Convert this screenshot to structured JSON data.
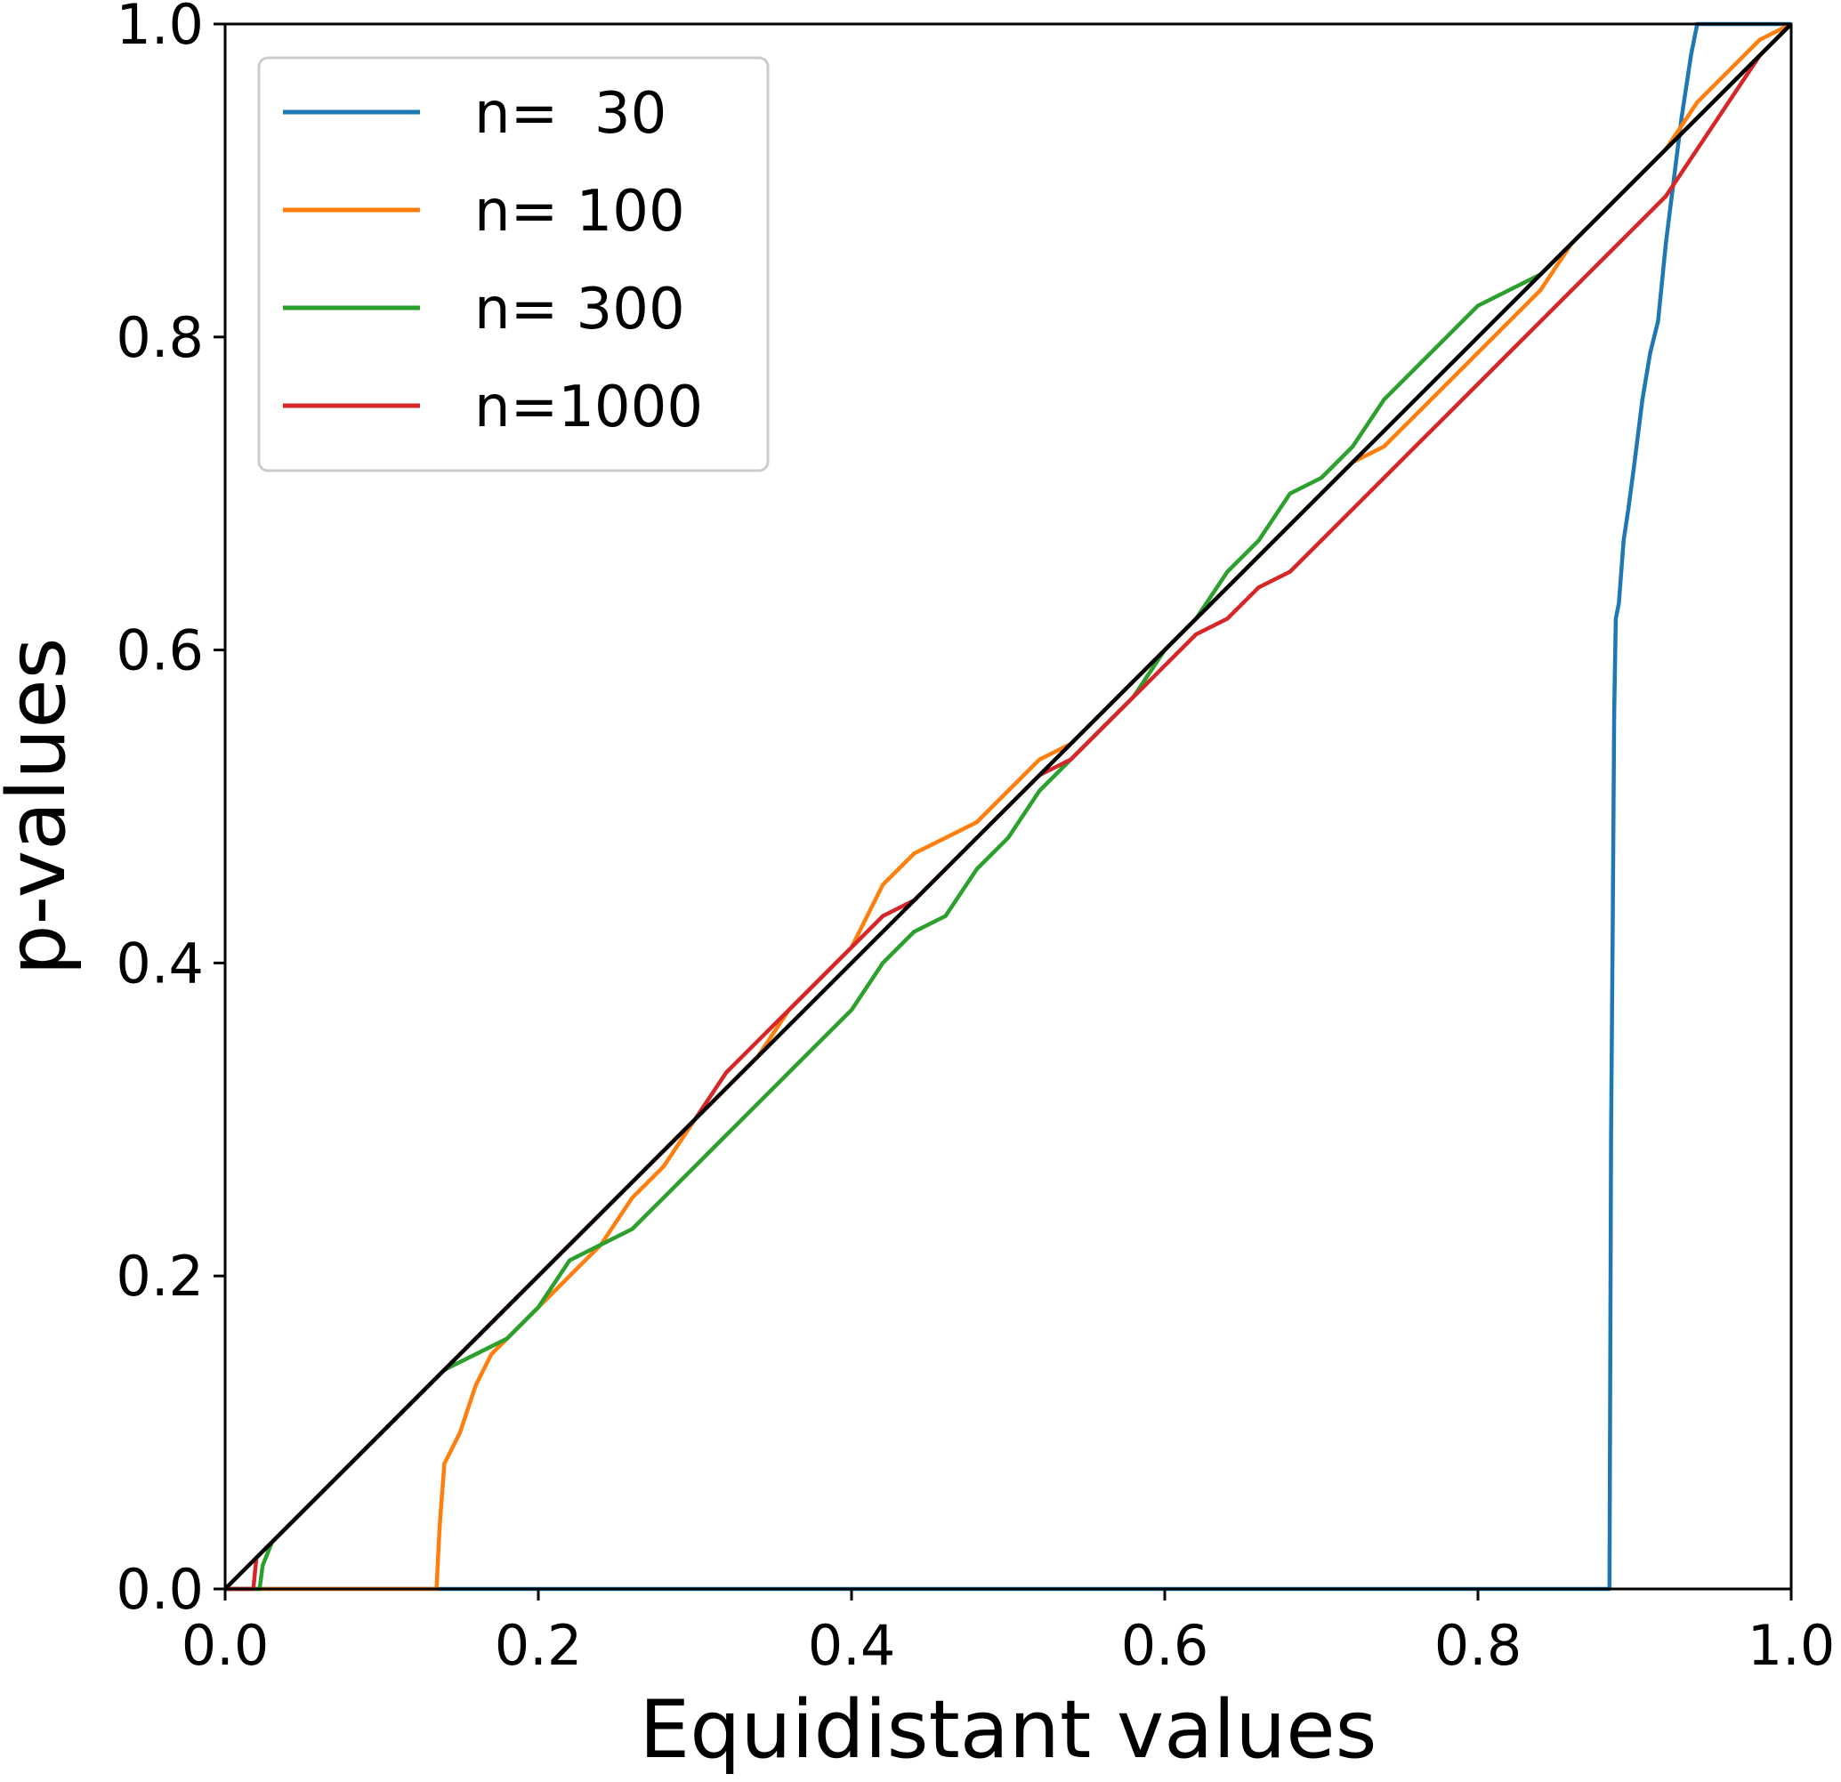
{
  "chart_data": {
    "type": "line",
    "title": "",
    "xlabel": "Equidistant values",
    "ylabel": "p-values",
    "xlim": [
      0.0,
      1.0
    ],
    "ylim": [
      0.0,
      1.0
    ],
    "xticks": [
      "0.0",
      "0.2",
      "0.4",
      "0.6",
      "0.8",
      "1.0"
    ],
    "yticks": [
      "0.0",
      "0.2",
      "0.4",
      "0.6",
      "0.8",
      "1.0"
    ],
    "grid": false,
    "legend_position": "top-left",
    "reference_line": {
      "color": "#000000",
      "x": [
        0.0,
        1.0
      ],
      "y": [
        0.0,
        1.0
      ]
    },
    "series": [
      {
        "name": "n=  30",
        "color": "#1f77b4",
        "x": [
          0.0,
          0.884,
          0.885,
          0.886,
          0.887,
          0.888,
          0.89,
          0.893,
          0.896,
          0.9,
          0.905,
          0.91,
          0.915,
          0.92,
          0.925,
          0.93,
          0.933,
          0.936,
          0.94,
          0.97,
          1.0
        ],
        "y": [
          0.0,
          0.0,
          0.29,
          0.42,
          0.56,
          0.62,
          0.63,
          0.67,
          0.69,
          0.72,
          0.76,
          0.79,
          0.81,
          0.86,
          0.9,
          0.94,
          0.96,
          0.98,
          1.0,
          1.0,
          1.0
        ]
      },
      {
        "name": "n= 100",
        "color": "#ff7f0e",
        "x": [
          0.0,
          0.135,
          0.137,
          0.14,
          0.15,
          0.16,
          0.17,
          0.18,
          0.2,
          0.22,
          0.24,
          0.26,
          0.28,
          0.3,
          0.32,
          0.34,
          0.36,
          0.38,
          0.4,
          0.42,
          0.44,
          0.46,
          0.48,
          0.5,
          0.52,
          0.54,
          0.56,
          0.58,
          0.6,
          0.62,
          0.64,
          0.66,
          0.68,
          0.7,
          0.72,
          0.74,
          0.76,
          0.78,
          0.8,
          0.82,
          0.84,
          0.86,
          0.88,
          0.9,
          0.92,
          0.94,
          0.96,
          0.98,
          1.0
        ],
        "y": [
          0.0,
          0.0,
          0.04,
          0.08,
          0.1,
          0.13,
          0.15,
          0.16,
          0.18,
          0.2,
          0.22,
          0.25,
          0.27,
          0.3,
          0.32,
          0.34,
          0.37,
          0.39,
          0.41,
          0.45,
          0.47,
          0.48,
          0.49,
          0.51,
          0.53,
          0.54,
          0.56,
          0.58,
          0.6,
          0.62,
          0.64,
          0.66,
          0.68,
          0.7,
          0.72,
          0.73,
          0.75,
          0.77,
          0.79,
          0.81,
          0.83,
          0.86,
          0.88,
          0.9,
          0.92,
          0.95,
          0.97,
          0.99,
          1.0
        ]
      },
      {
        "name": "n= 300",
        "color": "#2ca02c",
        "x": [
          0.0,
          0.022,
          0.024,
          0.03,
          0.05,
          0.08,
          0.1,
          0.12,
          0.14,
          0.16,
          0.18,
          0.2,
          0.22,
          0.24,
          0.26,
          0.28,
          0.3,
          0.32,
          0.34,
          0.36,
          0.38,
          0.4,
          0.42,
          0.44,
          0.46,
          0.48,
          0.5,
          0.52,
          0.54,
          0.56,
          0.58,
          0.6,
          0.62,
          0.64,
          0.66,
          0.68,
          0.7,
          0.72,
          0.74,
          0.76,
          0.78,
          0.8,
          0.82,
          0.84,
          0.86,
          0.88,
          0.9,
          0.92,
          0.94,
          0.96,
          0.98,
          1.0
        ],
        "y": [
          0.0,
          0.0,
          0.015,
          0.03,
          0.05,
          0.08,
          0.1,
          0.12,
          0.14,
          0.15,
          0.16,
          0.18,
          0.21,
          0.22,
          0.23,
          0.25,
          0.27,
          0.29,
          0.31,
          0.33,
          0.35,
          0.37,
          0.4,
          0.42,
          0.43,
          0.46,
          0.48,
          0.51,
          0.53,
          0.55,
          0.57,
          0.6,
          0.62,
          0.65,
          0.67,
          0.7,
          0.71,
          0.73,
          0.76,
          0.78,
          0.8,
          0.82,
          0.83,
          0.84,
          0.86,
          0.88,
          0.9,
          0.92,
          0.94,
          0.96,
          0.98,
          1.0
        ]
      },
      {
        "name": "n=1000",
        "color": "#d62728",
        "x": [
          0.0,
          0.018,
          0.02,
          0.04,
          0.06,
          0.08,
          0.1,
          0.12,
          0.14,
          0.16,
          0.18,
          0.2,
          0.22,
          0.24,
          0.26,
          0.28,
          0.3,
          0.32,
          0.34,
          0.36,
          0.38,
          0.4,
          0.42,
          0.44,
          0.46,
          0.48,
          0.5,
          0.52,
          0.54,
          0.56,
          0.58,
          0.6,
          0.62,
          0.64,
          0.66,
          0.68,
          0.7,
          0.72,
          0.74,
          0.76,
          0.78,
          0.8,
          0.82,
          0.84,
          0.86,
          0.88,
          0.9,
          0.92,
          0.94,
          0.96,
          0.98,
          1.0
        ],
        "y": [
          0.0,
          0.0,
          0.02,
          0.04,
          0.06,
          0.08,
          0.1,
          0.12,
          0.14,
          0.16,
          0.18,
          0.2,
          0.22,
          0.24,
          0.26,
          0.28,
          0.3,
          0.33,
          0.35,
          0.37,
          0.39,
          0.41,
          0.43,
          0.44,
          0.46,
          0.48,
          0.5,
          0.52,
          0.53,
          0.55,
          0.57,
          0.59,
          0.61,
          0.62,
          0.64,
          0.65,
          0.67,
          0.69,
          0.71,
          0.73,
          0.75,
          0.77,
          0.79,
          0.81,
          0.83,
          0.85,
          0.87,
          0.89,
          0.92,
          0.95,
          0.98,
          1.0
        ]
      }
    ]
  }
}
